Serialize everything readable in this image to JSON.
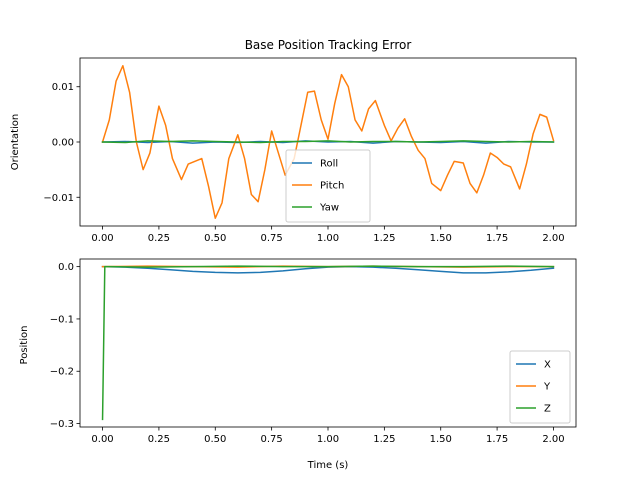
{
  "chart_data": [
    {
      "type": "line",
      "title": "Base Position Tracking Error",
      "xlabel": "",
      "ylabel": "Orientation",
      "xlim": [
        -0.1,
        2.1
      ],
      "ylim": [
        -0.0152,
        0.0152
      ],
      "xticks": [
        0.0,
        0.25,
        0.5,
        0.75,
        1.0,
        1.25,
        1.5,
        1.75,
        2.0
      ],
      "xtick_labels": [
        "0.00",
        "0.25",
        "0.50",
        "0.75",
        "1.00",
        "1.25",
        "1.50",
        "1.75",
        "2.00"
      ],
      "yticks": [
        -0.01,
        0.0,
        0.01
      ],
      "ytick_labels": [
        "−0.01",
        "0.00",
        "0.01"
      ],
      "legend": {
        "location": "lower-center",
        "entries": [
          "Roll",
          "Pitch",
          "Yaw"
        ]
      },
      "series": [
        {
          "name": "Roll",
          "color": "#1f77b4",
          "x": [
            0.0,
            0.1,
            0.2,
            0.3,
            0.4,
            0.5,
            0.6,
            0.7,
            0.8,
            0.9,
            1.0,
            1.1,
            1.2,
            1.3,
            1.4,
            1.5,
            1.6,
            1.7,
            1.8,
            1.9,
            2.0
          ],
          "y": [
            0.0,
            0.0001,
            -0.0001,
            0.0001,
            -0.0002,
            0.0,
            -0.0001,
            0.0001,
            -0.0001,
            0.0002,
            0.0,
            0.0001,
            -0.0002,
            0.0001,
            0.0,
            -0.0001,
            0.0001,
            -0.0002,
            0.0001,
            0.0,
            0.0
          ]
        },
        {
          "name": "Pitch",
          "color": "#ff7f0e",
          "x": [
            0.0,
            0.03,
            0.06,
            0.09,
            0.12,
            0.15,
            0.18,
            0.21,
            0.25,
            0.28,
            0.31,
            0.35,
            0.38,
            0.41,
            0.44,
            0.47,
            0.5,
            0.53,
            0.56,
            0.6,
            0.63,
            0.66,
            0.69,
            0.72,
            0.75,
            0.78,
            0.81,
            0.85,
            0.88,
            0.91,
            0.94,
            0.97,
            1.0,
            1.03,
            1.06,
            1.09,
            1.12,
            1.15,
            1.18,
            1.21,
            1.25,
            1.28,
            1.31,
            1.34,
            1.37,
            1.4,
            1.43,
            1.46,
            1.5,
            1.53,
            1.56,
            1.6,
            1.63,
            1.66,
            1.69,
            1.72,
            1.75,
            1.78,
            1.81,
            1.85,
            1.88,
            1.91,
            1.94,
            1.97,
            2.0
          ],
          "y": [
            0.0,
            0.004,
            0.011,
            0.0138,
            0.009,
            0.0,
            -0.005,
            -0.002,
            0.0065,
            0.003,
            -0.003,
            -0.0068,
            -0.004,
            -0.0035,
            -0.003,
            -0.008,
            -0.0138,
            -0.011,
            -0.003,
            0.0013,
            -0.003,
            -0.0095,
            -0.0108,
            -0.005,
            0.002,
            -0.002,
            -0.006,
            -0.003,
            0.003,
            0.009,
            0.0092,
            0.004,
            0.0005,
            0.007,
            0.0122,
            0.01,
            0.004,
            0.002,
            0.006,
            0.0075,
            0.003,
            0.0002,
            0.0025,
            0.0042,
            0.001,
            -0.0015,
            -0.003,
            -0.0075,
            -0.0088,
            -0.006,
            -0.0035,
            -0.0038,
            -0.0075,
            -0.0092,
            -0.006,
            -0.002,
            -0.0028,
            -0.004,
            -0.0045,
            -0.0085,
            -0.004,
            0.0015,
            0.005,
            0.0045,
            0.0003
          ]
        },
        {
          "name": "Yaw",
          "color": "#2ca02c",
          "x": [
            0.0,
            0.1,
            0.2,
            0.3,
            0.4,
            0.5,
            0.6,
            0.7,
            0.8,
            0.9,
            1.0,
            1.1,
            1.2,
            1.3,
            1.4,
            1.5,
            1.6,
            1.7,
            1.8,
            1.9,
            2.0
          ],
          "y": [
            0.0,
            -0.0001,
            0.0002,
            0.0001,
            0.0002,
            0.0001,
            0.0,
            -0.0001,
            0.0001,
            0.0001,
            0.0002,
            0.0,
            0.0001,
            0.0001,
            0.0,
            0.0001,
            0.0002,
            0.0001,
            0.0,
            0.0001,
            0.0
          ]
        }
      ]
    },
    {
      "type": "line",
      "title": "",
      "xlabel": "Time (s)",
      "ylabel": "Position",
      "xlim": [
        -0.1,
        2.1
      ],
      "ylim": [
        -0.3066,
        0.0146
      ],
      "xticks": [
        0.0,
        0.25,
        0.5,
        0.75,
        1.0,
        1.25,
        1.5,
        1.75,
        2.0
      ],
      "xtick_labels": [
        "0.00",
        "0.25",
        "0.50",
        "0.75",
        "1.00",
        "1.25",
        "1.50",
        "1.75",
        "2.00"
      ],
      "yticks": [
        -0.3,
        -0.2,
        -0.1,
        0.0
      ],
      "ytick_labels": [
        "−0.3",
        "−0.2",
        "−0.1",
        "0.0"
      ],
      "legend": {
        "location": "lower-right",
        "entries": [
          "X",
          "Y",
          "Z"
        ]
      },
      "series": [
        {
          "name": "X",
          "color": "#1f77b4",
          "x": [
            0.0,
            0.1,
            0.2,
            0.3,
            0.4,
            0.5,
            0.6,
            0.7,
            0.8,
            0.9,
            1.0,
            1.1,
            1.2,
            1.3,
            1.4,
            1.5,
            1.6,
            1.7,
            1.8,
            1.9,
            2.0
          ],
          "y": [
            0.0,
            -0.001,
            -0.003,
            -0.006,
            -0.009,
            -0.011,
            -0.012,
            -0.011,
            -0.008,
            -0.004,
            -0.001,
            0.0,
            -0.001,
            -0.003,
            -0.006,
            -0.009,
            -0.012,
            -0.012,
            -0.01,
            -0.007,
            -0.003
          ]
        },
        {
          "name": "Y",
          "color": "#ff7f0e",
          "x": [
            0.0,
            0.2,
            0.4,
            0.6,
            0.8,
            1.0,
            1.2,
            1.4,
            1.6,
            1.8,
            2.0
          ],
          "y": [
            0.0,
            0.001,
            0.0,
            -0.001,
            0.001,
            0.0,
            0.001,
            0.0,
            -0.001,
            0.0,
            0.0
          ]
        },
        {
          "name": "Z",
          "color": "#2ca02c",
          "x": [
            0.0,
            0.01,
            0.03,
            0.2,
            0.4,
            0.6,
            0.8,
            1.0,
            1.2,
            1.4,
            1.6,
            1.8,
            2.0
          ],
          "y": [
            -0.292,
            0.0,
            0.0,
            -0.001,
            0.0,
            0.001,
            0.0,
            0.0,
            0.001,
            0.0,
            0.0,
            0.001,
            0.0
          ]
        }
      ]
    }
  ]
}
